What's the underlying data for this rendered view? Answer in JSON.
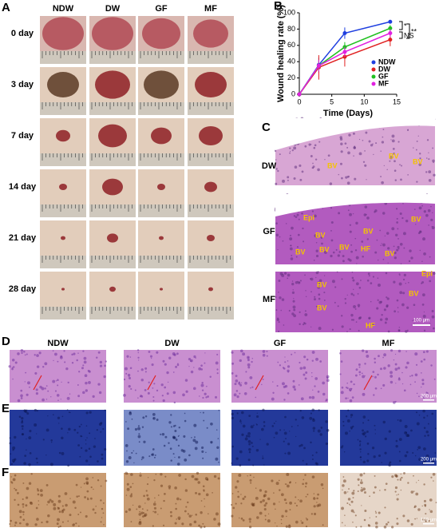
{
  "panel_labels": [
    "A",
    "B",
    "C",
    "D",
    "E",
    "F"
  ],
  "panel_a": {
    "columns": [
      "NDW",
      "DW",
      "GF",
      "MF"
    ],
    "rows": [
      "0 day",
      "3 day",
      "7 day",
      "14 day",
      "21 day",
      "28 day"
    ]
  },
  "chart_data": {
    "type": "line",
    "x": [
      0,
      3,
      7,
      14
    ],
    "xlim": [
      0,
      15
    ],
    "xticks": [
      0,
      5,
      10,
      15
    ],
    "ylim": [
      0,
      100
    ],
    "yticks": [
      0,
      20,
      40,
      60,
      80,
      100
    ],
    "xlabel": "Time (Days)",
    "ylabel": "Wound healing rate (%)",
    "legend": "right",
    "series": [
      {
        "name": "NDW",
        "color": "#1f3fe0",
        "values": [
          0,
          36,
          75,
          89
        ],
        "errors": [
          0,
          9,
          7,
          2
        ]
      },
      {
        "name": "DW",
        "color": "#e02020",
        "values": [
          0,
          33,
          46,
          67
        ],
        "errors": [
          0,
          15,
          12,
          8
        ]
      },
      {
        "name": "GF",
        "color": "#20c020",
        "values": [
          0,
          35,
          58,
          81
        ],
        "errors": [
          0,
          6,
          6,
          4
        ]
      },
      {
        "name": "MF",
        "color": "#e020e0",
        "values": [
          0,
          35,
          52,
          75
        ],
        "errors": [
          0,
          7,
          6,
          5
        ]
      }
    ],
    "annotations": [
      "*",
      "NS",
      "**"
    ]
  },
  "panel_c": {
    "rows": [
      "DW",
      "GF",
      "MF"
    ],
    "labels": [
      [
        "BV",
        "BV",
        "BV"
      ],
      [
        "Epi",
        "BV",
        "BV",
        "BV",
        "BV",
        "BV",
        "HF",
        "BV",
        "BV"
      ],
      [
        "Epi",
        "BV",
        "BV",
        "BV",
        "HF"
      ]
    ],
    "scale_bar": "100 μm"
  },
  "panel_d": {
    "columns": [
      "NDW",
      "DW",
      "GF",
      "MF"
    ],
    "scale_bar": "200 μm"
  },
  "panel_e": {
    "scale_bar": "200 μm"
  },
  "panel_f": {
    "scale_bar": "100 μm"
  }
}
